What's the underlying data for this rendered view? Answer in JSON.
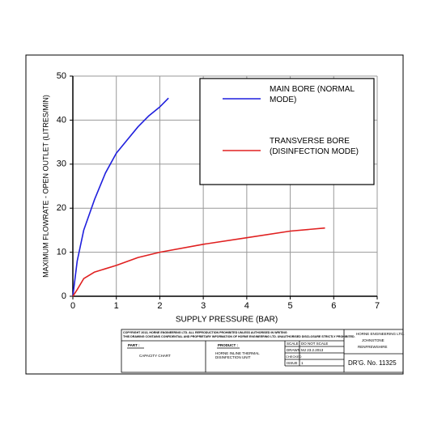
{
  "chart_data": {
    "type": "line",
    "x_label": "SUPPLY PRESSURE (BAR)",
    "y_label": "MAXIMUM FLOWRATE - OPEN OUTLET (LITRES/MIN)",
    "xlim": [
      0,
      7
    ],
    "ylim": [
      0,
      50
    ],
    "xticks": [
      0,
      1,
      2,
      3,
      4,
      5,
      6,
      7
    ],
    "yticks": [
      0,
      10,
      20,
      30,
      40,
      50
    ],
    "grid": true,
    "legend": "upper right",
    "series": [
      {
        "name": "MAIN BORE (NORMAL MODE)",
        "color": "#1f1fdd",
        "x": [
          0,
          0.1,
          0.25,
          0.5,
          0.75,
          1,
          1.25,
          1.5,
          1.75,
          2,
          2.2
        ],
        "values": [
          0,
          8,
          15,
          22,
          28,
          32.5,
          35.5,
          38.5,
          41,
          43,
          45
        ]
      },
      {
        "name": "TRANSVERSE BORE (DISINFECTION MODE)",
        "color": "#e02020",
        "x": [
          0,
          0.1,
          0.25,
          0.5,
          1,
          1.5,
          2,
          3,
          4,
          5,
          5.8
        ],
        "values": [
          0,
          1.5,
          4,
          5.5,
          7,
          8.8,
          10,
          11.8,
          13.3,
          14.8,
          15.5
        ]
      }
    ]
  },
  "title_block": {
    "copyright": [
      "COPYRIGHT 2013, HORNE ENGINEERING LTD. ALL REPRODUCTION PROHIBITED UNLESS AUTHORISED IN WRITING",
      "THIS DRAWING CONTAINS CONFIDENTIAL AND PROPRIETARY INFORMATION OF HORNE ENGINEERING LTD. UNAUTHORISED DISCLOSURE STRICTLY PROHIBITED."
    ],
    "part_label": "PART :",
    "part": "CAPACITY CHART",
    "product_label": "PRODUCT :",
    "product": "HORNE INLINE THERMAL DISINFECTION UNIT",
    "scale_label": "SCALE",
    "scale": "DO NOT SCALE",
    "drawn_label": "DRAWN",
    "drawn": "MJ 23.2.2013",
    "checked_label": "CHECKED",
    "issue_label": "ISSUE",
    "issue": "1",
    "company": [
      "HORNE ENGINEERING LTD.",
      "JOHNSTONE",
      "RENFREWSHIRE"
    ],
    "drg_label": "DR'G. No.",
    "drg": "11325"
  }
}
